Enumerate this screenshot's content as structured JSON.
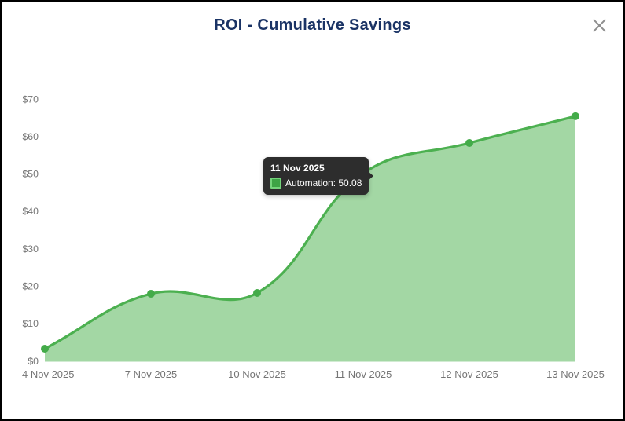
{
  "dialog": {
    "title": "ROI - Cumulative Savings"
  },
  "tooltip": {
    "date": "11 Nov 2025",
    "series": "Automation",
    "value": "50.08",
    "text": "Automation: 50.08"
  },
  "chart_data": {
    "type": "area",
    "title": "ROI - Cumulative Savings",
    "categories": [
      "4 Nov 2025",
      "7 Nov 2025",
      "10 Nov 2025",
      "11 Nov 2025",
      "12 Nov 2025",
      "13 Nov 2025"
    ],
    "series": [
      {
        "name": "Automation",
        "values": [
          3.25,
          17.95,
          18.15,
          50.08,
          58.25,
          65.4
        ]
      }
    ],
    "xlabel": "",
    "ylabel": "",
    "ylim": [
      0,
      70
    ],
    "y_ticks": [
      {
        "label": "$70",
        "value": 70
      },
      {
        "label": "$60",
        "value": 60
      },
      {
        "label": "$50",
        "value": 50
      },
      {
        "label": "$40",
        "value": 40
      },
      {
        "label": "$30",
        "value": 30
      },
      {
        "label": "$20",
        "value": 20
      },
      {
        "label": "$10",
        "value": 10
      },
      {
        "label": "$0",
        "value": 0
      }
    ],
    "grid": false,
    "smooth": true,
    "legend_position": "none",
    "highlight_index": 3
  },
  "colors": {
    "title_color": "#1a3365",
    "axis_label": "#757575",
    "line_color": "#4cb050",
    "fill_color": "#a3d7a4",
    "point_color": "#43ab49",
    "tooltip_bg": "#2d2d2d",
    "swatch_fill": "#3da345",
    "swatch_border": "#74d37b",
    "close_icon": "#8f8f8f"
  }
}
